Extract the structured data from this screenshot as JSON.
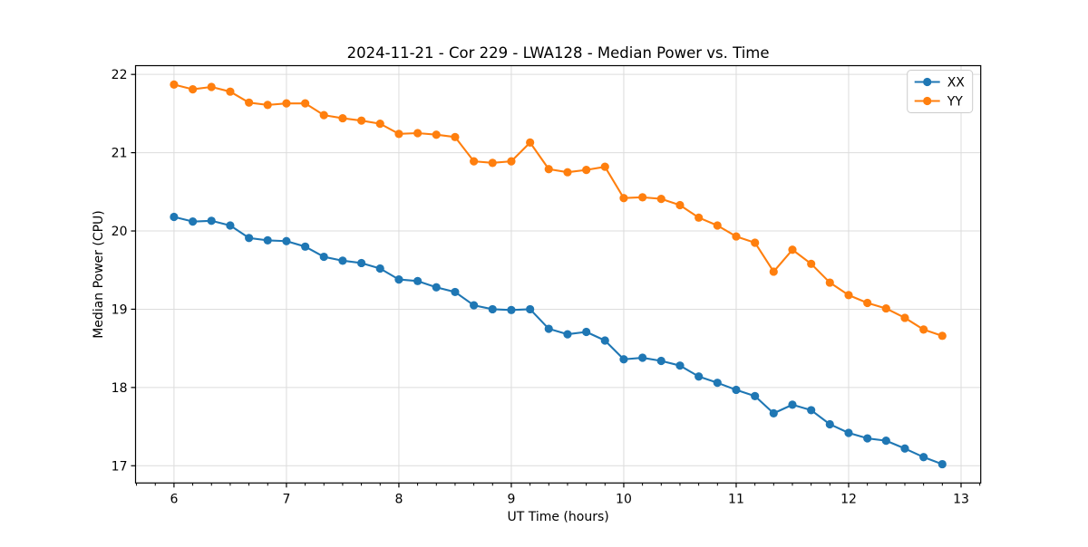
{
  "title": "2024-11-21 - Cor 229 - LWA128 - Median Power vs. Time",
  "chart_data": {
    "type": "line",
    "title": "2024-11-21 - Cor 229 - LWA128 - Median Power vs. Time",
    "xlabel": "UT Time (hours)",
    "ylabel": "Median Power (CPU)",
    "xlim": [
      5.658,
      13.175
    ],
    "ylim": [
      16.78,
      22.112
    ],
    "x_major_ticks": [
      6,
      7,
      8,
      9,
      10,
      11,
      12,
      13
    ],
    "x_minor_tick_interval": 0.16667,
    "y_major_ticks": [
      17,
      18,
      19,
      20,
      21,
      22
    ],
    "grid": "major-both-light-gray",
    "legend_position": "upper-right",
    "background": "#ffffff",
    "grid_color": "#dcdcdc",
    "spine_color": "#000000",
    "x": [
      6.0,
      6.167,
      6.333,
      6.5,
      6.667,
      6.833,
      7.0,
      7.167,
      7.333,
      7.5,
      7.667,
      7.833,
      8.0,
      8.167,
      8.333,
      8.5,
      8.667,
      8.833,
      9.0,
      9.167,
      9.333,
      9.5,
      9.667,
      9.833,
      10.0,
      10.167,
      10.333,
      10.5,
      10.667,
      10.833,
      11.0,
      11.167,
      11.333,
      11.5,
      11.667,
      11.833,
      12.0,
      12.167,
      12.333,
      12.5,
      12.667,
      12.833
    ],
    "series": [
      {
        "name": "XX",
        "color": "#1f77b4",
        "values": [
          20.18,
          20.12,
          20.13,
          20.07,
          19.91,
          19.88,
          19.87,
          19.8,
          19.67,
          19.62,
          19.59,
          19.52,
          19.38,
          19.36,
          19.28,
          19.22,
          19.05,
          19.0,
          18.99,
          19.0,
          18.75,
          18.68,
          18.71,
          18.6,
          18.36,
          18.38,
          18.34,
          18.28,
          18.14,
          18.06,
          17.97,
          17.89,
          17.67,
          17.78,
          17.71,
          17.53,
          17.42,
          17.35,
          17.32,
          17.22,
          17.11,
          17.02
        ]
      },
      {
        "name": "YY",
        "color": "#ff7f0e",
        "values": [
          21.87,
          21.81,
          21.84,
          21.78,
          21.64,
          21.61,
          21.63,
          21.63,
          21.48,
          21.44,
          21.41,
          21.37,
          21.24,
          21.25,
          21.23,
          21.2,
          20.89,
          20.87,
          20.89,
          21.13,
          20.79,
          20.75,
          20.78,
          20.82,
          20.42,
          20.43,
          20.41,
          20.33,
          20.17,
          20.07,
          19.93,
          19.85,
          19.48,
          19.76,
          19.58,
          19.34,
          19.18,
          19.08,
          19.01,
          18.89,
          18.74,
          18.66
        ]
      }
    ]
  }
}
